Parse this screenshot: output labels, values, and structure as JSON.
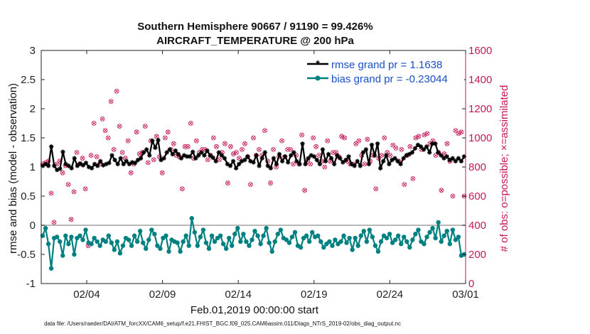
{
  "chart_data": {
    "type": "line",
    "title": "Southern Hemisphere 90667 / 91190 = 99.426%",
    "subtitle": "AIRCRAFT_TEMPERATURE @ 200 hPa",
    "xlabel": "Feb.01,2019 00:00:00 start",
    "ylabel": "rmse and bias (model - observation)",
    "ylabel_right": "# of obs: o=possible; ×=assimilated",
    "footer": "data file: /Users/raeder/DAI/ATM_forcXX/CAM6_setup/f.e21.FHIST_BGC.f09_025.CAM6assim.011/Diags_NTrS_2019-02/obs_diag_output.nc",
    "x_tick_labels": [
      "02/04",
      "02/09",
      "02/14",
      "02/19",
      "02/24",
      "03/01"
    ],
    "x_ticks_days": [
      3,
      8,
      13,
      18,
      23,
      28
    ],
    "xlim": [
      0,
      28
    ],
    "ylim": [
      -1,
      3
    ],
    "y_ticks": [
      -1,
      -0.5,
      0,
      0.5,
      1,
      1.5,
      2,
      2.5,
      3
    ],
    "y_tick_labels": [
      "-1",
      "-0.5",
      "0",
      "0.5",
      "1",
      "1.5",
      "2",
      "2.5",
      "3"
    ],
    "ylim_right": [
      0,
      1600
    ],
    "y_ticks_right": [
      0,
      200,
      400,
      600,
      800,
      1000,
      1200,
      1400,
      1600
    ],
    "y_tick_labels_right": [
      "0",
      "200",
      "400",
      "600",
      "800",
      "1000",
      "1200",
      "1400",
      "1600"
    ],
    "zero_line": true,
    "legend": {
      "position": "top-right"
    },
    "series": [
      {
        "name": "rmse grand pr = 1.1638",
        "color": "#000000",
        "marker": "asterisk",
        "values": [
          1.02,
          1.05,
          1.02,
          1.35,
          1.02,
          0.95,
          0.97,
          1.26,
          1.05,
          1.02,
          0.98,
          1.15,
          1.02,
          1.06,
          1.03,
          1.07,
          1.0,
          0.98,
          1.05,
          1.02,
          1.1,
          1.03,
          1.05,
          1.07,
          1.2,
          1.12,
          1.05,
          1.15,
          1.05,
          1.1,
          1.05,
          1.08,
          1.07,
          1.12,
          1.15,
          1.25,
          1.3,
          1.2,
          1.45,
          1.33,
          1.46,
          1.12,
          1.15,
          1.25,
          1.3,
          1.22,
          1.28,
          1.22,
          1.15,
          1.2,
          1.18,
          1.18,
          1.26,
          1.15,
          1.2,
          1.25,
          1.2,
          1.28,
          1.2,
          1.16,
          1.1,
          1.25,
          1.2,
          1.15,
          1.05,
          1.02,
          1.1,
          0.98,
          1.05,
          1.1,
          1.12,
          1.18,
          1.1,
          1.08,
          1.2,
          1.02,
          1.15,
          1.25,
          1.02,
          0.98,
          1.15,
          1.05,
          1.22,
          1.1,
          1.18,
          1.08,
          1.2,
          1.25,
          1.1,
          1.05,
          1.4,
          1.05,
          1.15,
          1.2,
          1.18,
          1.12,
          1.05,
          1.3,
          1.1,
          1.22,
          1.15,
          1.05,
          1.2,
          1.15,
          1.08,
          1.12,
          1.18,
          1.05,
          1.02,
          1.1,
          1.02,
          1.25,
          1.3,
          1.05,
          1.38,
          1.2,
          1.4,
          0.98,
          1.1,
          1.2,
          1.05,
          1.12,
          1.15,
          1.1,
          1.05,
          1.15,
          1.2,
          1.22,
          1.25,
          1.32,
          1.38,
          1.35,
          1.3,
          1.35,
          1.25,
          1.4,
          1.4,
          1.25,
          1.2,
          1.15,
          1.18,
          1.12,
          1.15,
          1.1,
          1.15,
          1.1,
          1.18
        ]
      },
      {
        "name": "bias grand pr = -0.23044",
        "color": "#008080",
        "marker": "circle",
        "values": [
          -0.18,
          -0.05,
          -0.32,
          -0.74,
          -0.22,
          -0.2,
          -0.28,
          -0.52,
          -0.18,
          -0.32,
          -0.2,
          -0.5,
          -0.22,
          -0.18,
          -0.25,
          -0.08,
          -0.3,
          -0.32,
          -0.22,
          -0.28,
          -0.35,
          -0.25,
          -0.28,
          -0.18,
          -0.3,
          -0.42,
          -0.28,
          -0.48,
          -0.35,
          -0.22,
          -0.25,
          -0.35,
          -0.18,
          -0.28,
          -0.1,
          -0.3,
          -0.4,
          -0.25,
          -0.08,
          -0.15,
          -0.35,
          -0.4,
          -0.22,
          -0.18,
          -0.45,
          -0.25,
          -0.28,
          -0.3,
          -0.45,
          -0.28,
          -0.18,
          -0.35,
          0.12,
          -0.12,
          -0.35,
          -0.2,
          -0.08,
          -0.3,
          -0.4,
          -0.18,
          -0.28,
          -0.22,
          -0.18,
          -0.32,
          -0.4,
          -0.22,
          -0.35,
          -0.15,
          -0.05,
          -0.28,
          -0.15,
          -0.28,
          -0.35,
          -0.25,
          -0.1,
          -0.18,
          -0.32,
          -0.18,
          -0.05,
          -0.3,
          -0.45,
          -0.28,
          -0.15,
          -0.08,
          -0.22,
          -0.25,
          -0.3,
          -0.2,
          -0.12,
          -0.35,
          -0.38,
          -0.22,
          -0.18,
          -0.28,
          -0.12,
          -0.2,
          -0.18,
          -0.28,
          -0.38,
          -0.32,
          -0.28,
          -0.35,
          -0.25,
          -0.32,
          -0.28,
          -0.18,
          -0.3,
          -0.22,
          -0.42,
          -0.22,
          -0.35,
          -0.18,
          -0.1,
          -0.28,
          -0.08,
          -0.2,
          -0.35,
          -0.45,
          -0.28,
          -0.18,
          -0.22,
          -0.15,
          -0.3,
          -0.25,
          -0.18,
          -0.32,
          -0.2,
          -0.28,
          -0.38,
          -0.25,
          -0.15,
          -0.08,
          -0.28,
          -0.32,
          -0.2,
          -0.12,
          -0.05,
          -0.22,
          0.05,
          -0.28,
          -0.18,
          -0.1,
          -0.32,
          -0.08,
          -0.25,
          -0.2,
          -0.52,
          -0.5
        ]
      }
    ],
    "obs_points": {
      "color": "#c2185b",
      "axis": "right",
      "values": [
        820,
        830,
        840,
        620,
        420,
        820,
        840,
        760,
        810,
        680,
        440,
        630,
        900,
        820,
        860,
        650,
        260,
        880,
        1100,
        870,
        820,
        1130,
        1050,
        1000,
        1250,
        920,
        1320,
        1080,
        900,
        860,
        980,
        760,
        820,
        1040,
        890,
        900,
        1080,
        830,
        980,
        850,
        1010,
        870,
        760,
        1000,
        1040,
        920,
        960,
        880,
        870,
        650,
        940,
        940,
        1100,
        860,
        980,
        900,
        920,
        920,
        850,
        880,
        1000,
        940,
        850,
        900,
        960,
        690,
        940,
        890,
        900,
        860,
        920,
        960,
        870,
        680,
        1000,
        880,
        920,
        880,
        1050,
        840,
        690,
        920,
        800,
        870,
        980,
        870,
        920,
        920,
        820,
        880,
        820,
        1020,
        640,
        840,
        820,
        1000,
        940,
        880,
        840,
        800,
        980,
        840,
        900,
        900,
        870,
        1010,
        1000,
        840,
        820,
        820,
        960,
        980,
        880,
        820,
        990,
        840,
        880,
        650,
        860,
        880,
        1000,
        900,
        880,
        950,
        930,
        840,
        920,
        680,
        880,
        940,
        720,
        1000,
        1010,
        920,
        1020,
        1030,
        960,
        980,
        880,
        900,
        640,
        890,
        960,
        840,
        600,
        1050,
        1030,
        1040,
        600
      ]
    }
  }
}
